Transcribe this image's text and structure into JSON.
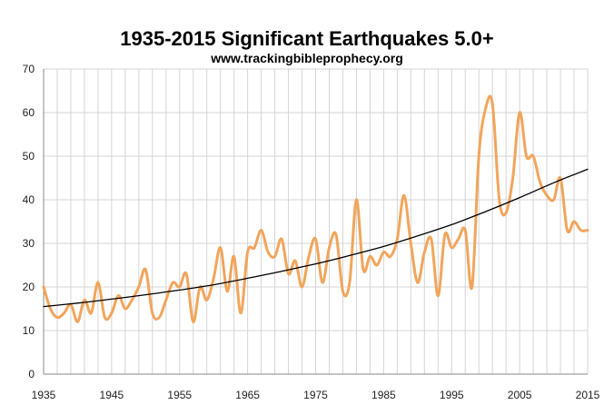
{
  "chart_data": {
    "type": "line",
    "title": "1935-2015 Significant Earthquakes 5.0+",
    "subtitle": "www.trackingbibleprophecy.org",
    "xlabel": "",
    "ylabel": "",
    "xlim": [
      1935,
      2015
    ],
    "ylim": [
      0,
      70
    ],
    "y_ticks": [
      0,
      10,
      20,
      30,
      40,
      50,
      60,
      70
    ],
    "x_ticks": [
      1935,
      1945,
      1955,
      1965,
      1975,
      1985,
      1995,
      2005,
      2015
    ],
    "grid": true,
    "legend": "none",
    "series": [
      {
        "color": "#f2a55b",
        "x": [
          1935,
          1936,
          1937,
          1938,
          1939,
          1940,
          1941,
          1942,
          1943,
          1944,
          1945,
          1946,
          1947,
          1948,
          1949,
          1950,
          1951,
          1952,
          1953,
          1954,
          1955,
          1956,
          1957,
          1958,
          1959,
          1960,
          1961,
          1962,
          1963,
          1964,
          1965,
          1966,
          1967,
          1968,
          1969,
          1970,
          1971,
          1972,
          1973,
          1974,
          1975,
          1976,
          1977,
          1978,
          1979,
          1980,
          1981,
          1982,
          1983,
          1984,
          1985,
          1986,
          1987,
          1988,
          1989,
          1990,
          1991,
          1992,
          1993,
          1994,
          1995,
          1996,
          1997,
          1998,
          1999,
          2000,
          2001,
          2002,
          2003,
          2004,
          2005,
          2006,
          2007,
          2008,
          2009,
          2010,
          2011,
          2012,
          2013,
          2014,
          2015
        ],
        "values": [
          20,
          15,
          13,
          14,
          16,
          12,
          17,
          14,
          21,
          13,
          14,
          18,
          15,
          17,
          20,
          24,
          14,
          13,
          17,
          21,
          20,
          23,
          12,
          20,
          17,
          22,
          29,
          19,
          27,
          14,
          28,
          29,
          33,
          28,
          27,
          31,
          23,
          26,
          20,
          27,
          31,
          21,
          29,
          32,
          19,
          21,
          40,
          24,
          27,
          25,
          28,
          27,
          31,
          41,
          30,
          21,
          28,
          31,
          18,
          32,
          29,
          31,
          33,
          20,
          50,
          61,
          62,
          40,
          37,
          45,
          60,
          50,
          50,
          44,
          41,
          40,
          45,
          33,
          35,
          33,
          33
        ]
      },
      {
        "color": "#000000",
        "x": [
          1935,
          1940,
          1945,
          1950,
          1955,
          1960,
          1965,
          1970,
          1975,
          1980,
          1985,
          1990,
          1995,
          2000,
          2005,
          2010,
          2015
        ],
        "values": [
          15.5,
          16.3,
          17.2,
          18.2,
          19.3,
          20.5,
          22.0,
          23.6,
          25.3,
          27.2,
          29.3,
          31.7,
          34.3,
          37.3,
          40.5,
          43.9,
          47.0
        ]
      }
    ]
  }
}
